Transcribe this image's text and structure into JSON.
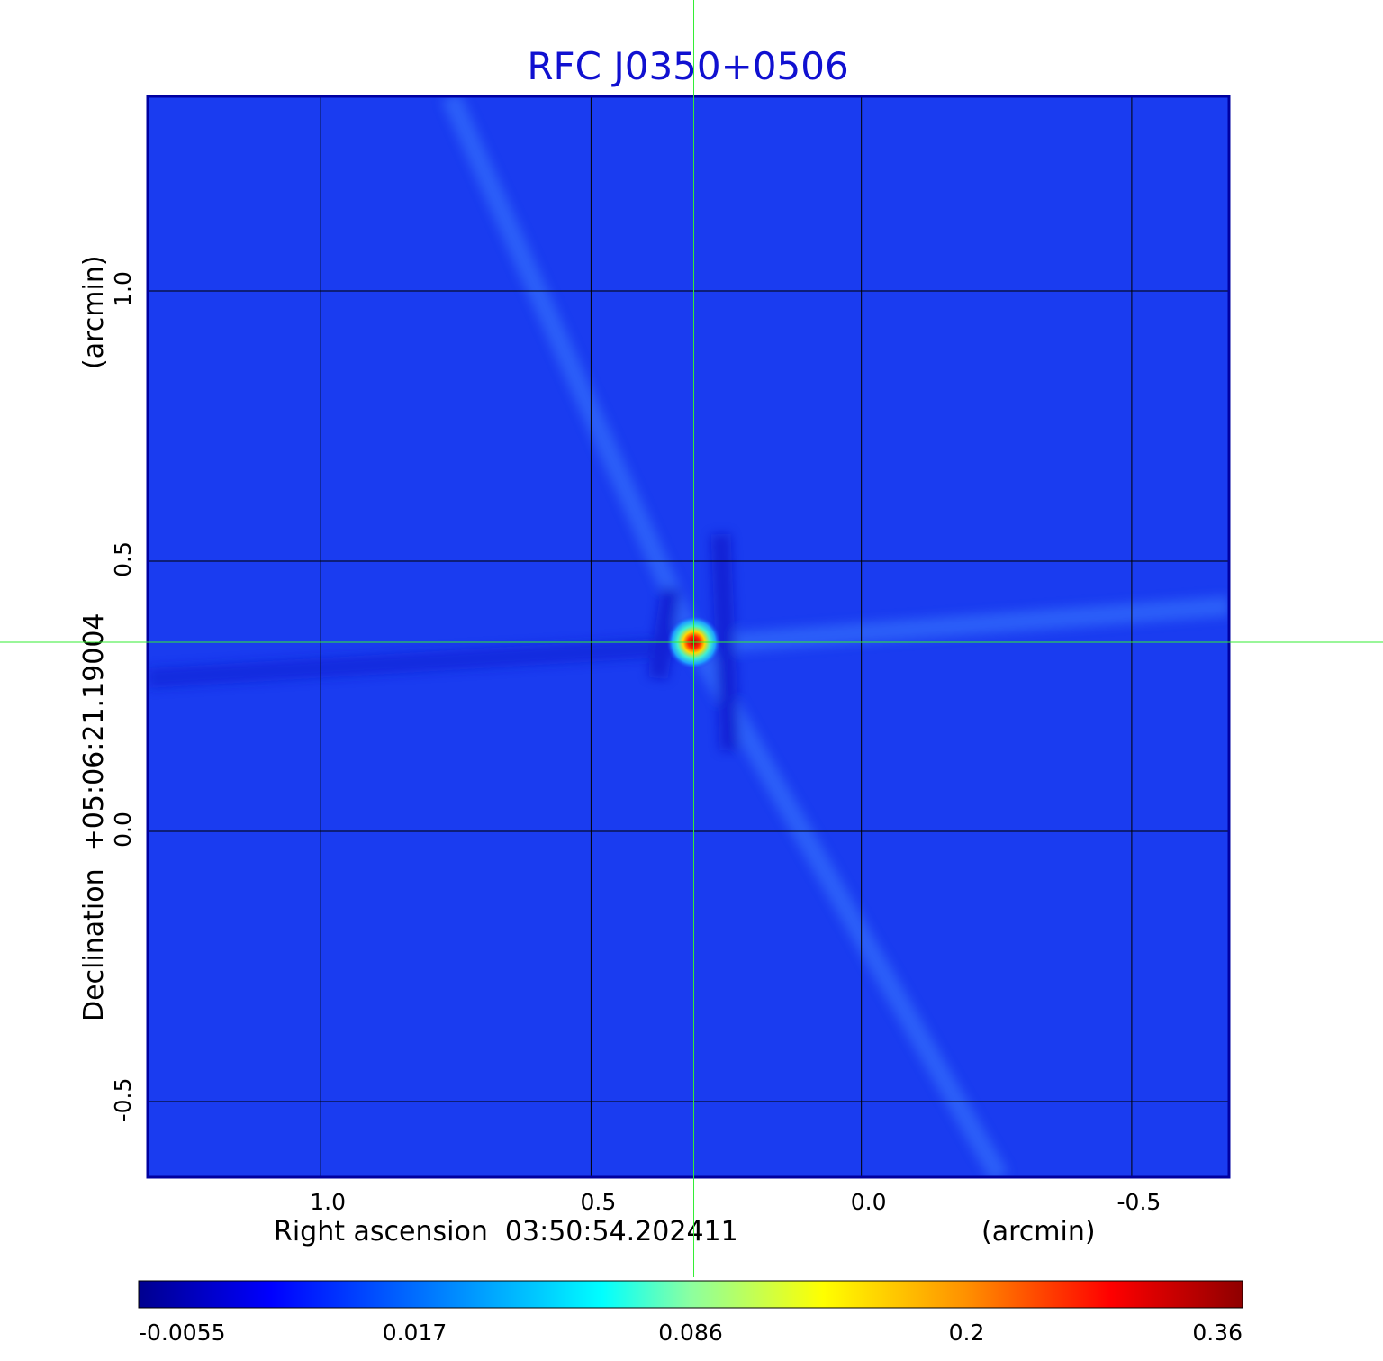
{
  "chart_data": {
    "type": "heatmap",
    "title": "RFC J0350+0506",
    "xlabel": "Right ascension  03:50:54.202411",
    "xunit": "(arcmin)",
    "ylabel": "Declination  +05:06:21.19004",
    "yunit": "(arcmin)",
    "x_ticks": [
      "1.0",
      "0.5",
      "0.0",
      "-0.5"
    ],
    "x_tick_values": [
      1.0,
      0.5,
      0.0,
      -0.5
    ],
    "y_ticks": [
      "1.0",
      "0.5",
      "0.0",
      "-0.5"
    ],
    "y_tick_values": [
      1.0,
      0.5,
      0.0,
      -0.5
    ],
    "xlim": [
      1.32,
      -0.68
    ],
    "ylim": [
      -0.64,
      1.36
    ],
    "grid": true,
    "crosshair": {
      "x": 0.31,
      "y": 0.35
    },
    "source_peak": {
      "x": 0.31,
      "y": 0.35,
      "value": 0.36
    },
    "colorbar": {
      "position": "bottom",
      "ticks": [
        "-0.0055",
        "0.017",
        "0.086",
        "0.2",
        "0.36"
      ],
      "colormap": "jet",
      "range": [
        -0.0055,
        0.36
      ]
    },
    "colors": {
      "title": "#1010d0",
      "background_field": "#1a3cf0",
      "grid": "#000000",
      "crosshair": "#33ee33"
    }
  }
}
